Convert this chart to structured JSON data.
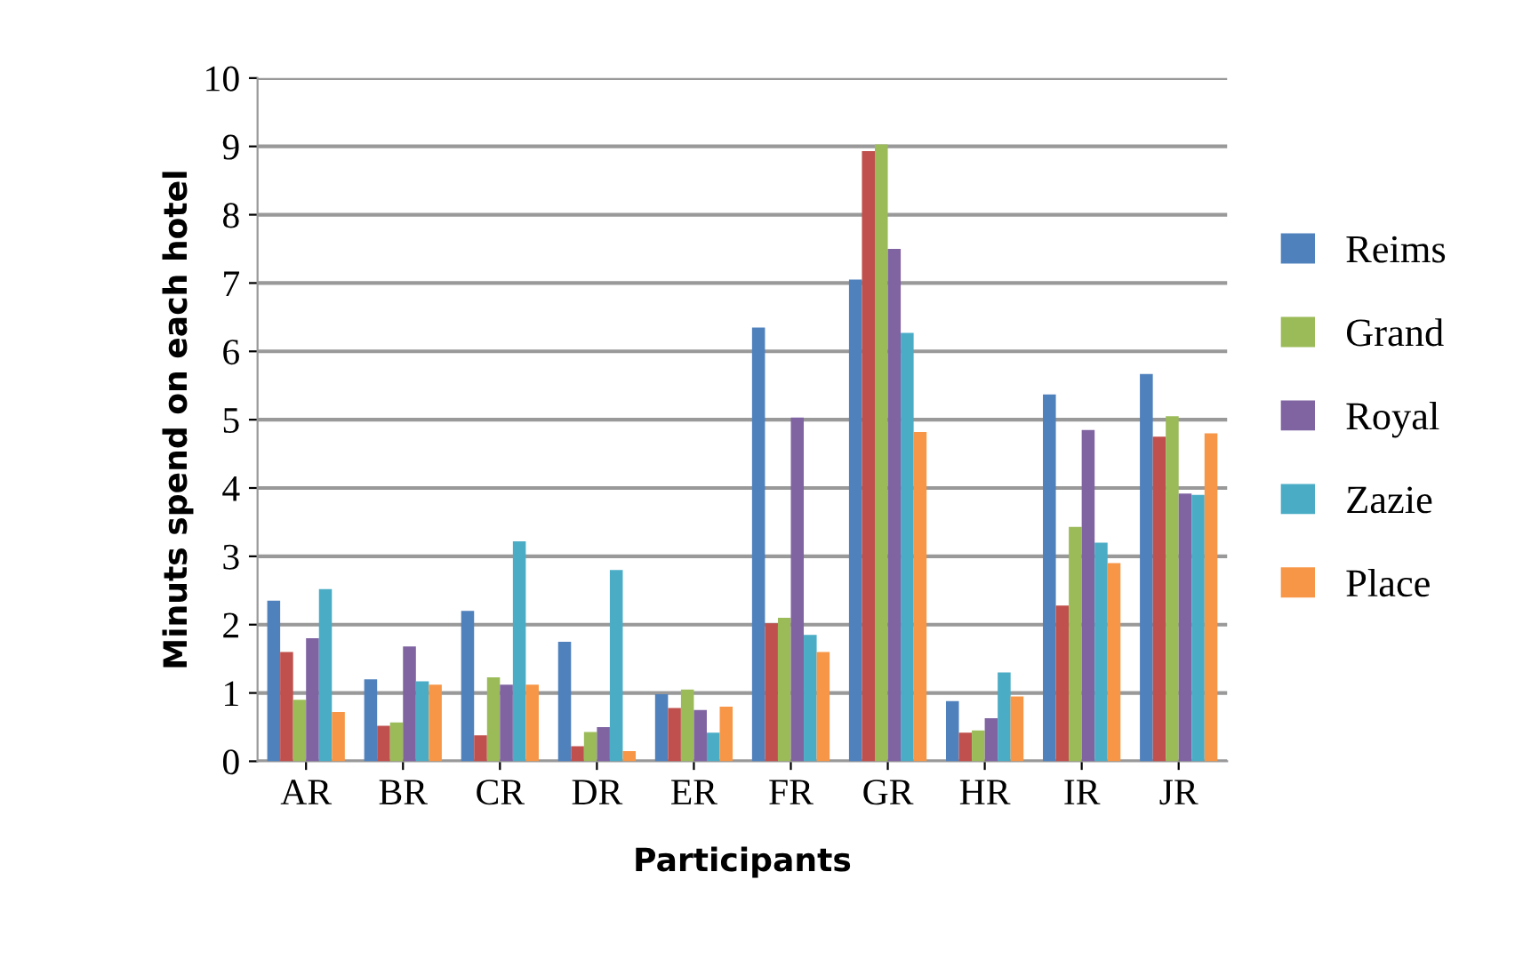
{
  "chart_data": {
    "type": "bar",
    "xlabel": "Participants",
    "ylabel": "Minuts spend on each hotel",
    "categories": [
      "AR",
      "BR",
      "CR",
      "DR",
      "ER",
      "FR",
      "GR",
      "HR",
      "IR",
      "JR"
    ],
    "series": [
      {
        "name": "Reims",
        "color": "#4f81bd",
        "values": [
          2.35,
          1.2,
          2.2,
          1.75,
          0.98,
          6.35,
          7.05,
          0.88,
          5.37,
          5.67
        ]
      },
      {
        "color": "#c0504d",
        "values": [
          1.6,
          0.52,
          0.38,
          0.22,
          0.78,
          2.02,
          8.93,
          0.42,
          2.28,
          4.75
        ]
      },
      {
        "name": "Grand",
        "color": "#9bbb59",
        "values": [
          0.9,
          0.57,
          1.23,
          0.43,
          1.05,
          2.1,
          9.03,
          0.45,
          3.43,
          5.05
        ]
      },
      {
        "name": "Royal",
        "color": "#8064a2",
        "values": [
          1.8,
          1.68,
          1.12,
          0.5,
          0.75,
          5.03,
          7.5,
          0.63,
          4.85,
          3.92
        ]
      },
      {
        "name": "Zazie",
        "color": "#4bacc6",
        "values": [
          2.52,
          1.17,
          3.22,
          2.8,
          0.42,
          1.85,
          6.27,
          1.3,
          3.2,
          3.9
        ]
      },
      {
        "name": "Place",
        "color": "#f79646",
        "values": [
          0.72,
          1.12,
          1.12,
          0.15,
          0.8,
          1.6,
          4.82,
          0.95,
          2.9,
          4.8
        ]
      }
    ],
    "ylim": [
      0,
      10
    ],
    "yticks": [
      0,
      1,
      2,
      3,
      4,
      5,
      6,
      7,
      8,
      9,
      10
    ],
    "grid": "y",
    "legend": "right"
  }
}
